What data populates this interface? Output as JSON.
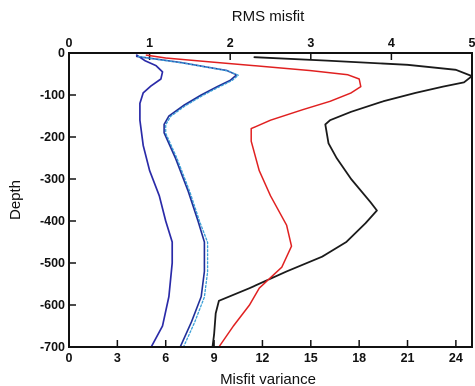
{
  "chart_data": {
    "type": "line",
    "title": "RMS misfit",
    "xlabel": "Misfit variance",
    "ylabel": "Depth",
    "x_bottom": {
      "min": 0,
      "max": 25,
      "ticks": [
        0,
        3,
        6,
        9,
        12,
        15,
        18,
        21,
        24
      ]
    },
    "x_top": {
      "min": 0,
      "max": 5,
      "ticks": [
        0,
        1,
        2,
        3,
        4,
        5
      ]
    },
    "y": {
      "min": -700,
      "max": 0,
      "ticks": [
        0,
        -100,
        -200,
        -300,
        -400,
        -500,
        -600,
        -700
      ]
    },
    "grid": false,
    "series": [
      {
        "color": "#1a1a1a",
        "width": 1.8,
        "dash": "",
        "points": [
          [
            11.5,
            -10
          ],
          [
            16,
            -18
          ],
          [
            21,
            -28
          ],
          [
            24,
            -40
          ],
          [
            25,
            -55
          ],
          [
            24.5,
            -70
          ],
          [
            23.2,
            -80
          ],
          [
            21.5,
            -95
          ],
          [
            19.5,
            -115
          ],
          [
            17.5,
            -140
          ],
          [
            16.2,
            -160
          ],
          [
            15.9,
            -170
          ],
          [
            16.1,
            -215
          ],
          [
            16.6,
            -250
          ],
          [
            17.5,
            -300
          ],
          [
            18.7,
            -355
          ],
          [
            19.1,
            -375
          ],
          [
            18.4,
            -405
          ],
          [
            17.2,
            -450
          ],
          [
            15.7,
            -485
          ],
          [
            13.5,
            -520
          ],
          [
            11.2,
            -560
          ],
          [
            9.3,
            -590
          ],
          [
            9.1,
            -620
          ],
          [
            9.0,
            -670
          ],
          [
            8.9,
            -700
          ]
        ]
      },
      {
        "color": "#e02020",
        "width": 1.5,
        "dash": "",
        "points": [
          [
            4.8,
            -5
          ],
          [
            6,
            -12
          ],
          [
            9,
            -22
          ],
          [
            12,
            -32
          ],
          [
            15,
            -42
          ],
          [
            17.3,
            -52
          ],
          [
            18.0,
            -62
          ],
          [
            18.1,
            -80
          ],
          [
            17.5,
            -95
          ],
          [
            16.2,
            -115
          ],
          [
            14.5,
            -135
          ],
          [
            12.5,
            -160
          ],
          [
            11.3,
            -180
          ],
          [
            11.3,
            -210
          ],
          [
            11.8,
            -280
          ],
          [
            12.5,
            -340
          ],
          [
            13.5,
            -410
          ],
          [
            13.8,
            -460
          ],
          [
            13.2,
            -510
          ],
          [
            11.8,
            -560
          ],
          [
            11.2,
            -600
          ],
          [
            10.2,
            -650
          ],
          [
            9.3,
            -700
          ]
        ]
      },
      {
        "color": "#2a2aa8",
        "width": 1.7,
        "dash": "",
        "points": [
          [
            4.2,
            -5
          ],
          [
            4.7,
            -18
          ],
          [
            5.4,
            -30
          ],
          [
            5.8,
            -45
          ],
          [
            5.7,
            -62
          ],
          [
            5.1,
            -78
          ],
          [
            4.6,
            -95
          ],
          [
            4.4,
            -120
          ],
          [
            4.4,
            -160
          ],
          [
            4.6,
            -220
          ],
          [
            5.0,
            -280
          ],
          [
            5.6,
            -340
          ],
          [
            6.0,
            -400
          ],
          [
            6.4,
            -450
          ],
          [
            6.4,
            -500
          ],
          [
            6.2,
            -580
          ],
          [
            5.8,
            -650
          ],
          [
            5.1,
            -700
          ]
        ]
      },
      {
        "color": "#1f2f9a",
        "width": 1.6,
        "dash": "",
        "points": [
          [
            4.2,
            -8
          ],
          [
            5.5,
            -15
          ],
          [
            7,
            -23
          ],
          [
            8.5,
            -33
          ],
          [
            9.8,
            -42
          ],
          [
            10.4,
            -52
          ],
          [
            10.0,
            -65
          ],
          [
            9.2,
            -80
          ],
          [
            8.2,
            -100
          ],
          [
            7.1,
            -125
          ],
          [
            6.2,
            -150
          ],
          [
            5.9,
            -170
          ],
          [
            5.9,
            -190
          ],
          [
            6.6,
            -250
          ],
          [
            7.4,
            -330
          ],
          [
            8.0,
            -400
          ],
          [
            8.4,
            -450
          ],
          [
            8.4,
            -520
          ],
          [
            8.2,
            -580
          ],
          [
            7.6,
            -640
          ],
          [
            6.9,
            -700
          ]
        ]
      },
      {
        "color": "#3aa0d8",
        "width": 1.3,
        "dash": "2 2",
        "points": [
          [
            4.3,
            -8
          ],
          [
            5.6,
            -16
          ],
          [
            7.1,
            -24
          ],
          [
            8.6,
            -34
          ],
          [
            9.9,
            -43
          ],
          [
            10.5,
            -53
          ],
          [
            10.1,
            -66
          ],
          [
            9.3,
            -81
          ],
          [
            8.3,
            -101
          ],
          [
            7.2,
            -126
          ],
          [
            6.3,
            -151
          ],
          [
            6.0,
            -171
          ],
          [
            6.0,
            -191
          ],
          [
            6.7,
            -251
          ],
          [
            7.5,
            -331
          ],
          [
            8.1,
            -401
          ],
          [
            8.6,
            -451
          ],
          [
            8.6,
            -521
          ],
          [
            8.4,
            -581
          ],
          [
            7.8,
            -641
          ],
          [
            7.1,
            -700
          ]
        ]
      }
    ]
  }
}
